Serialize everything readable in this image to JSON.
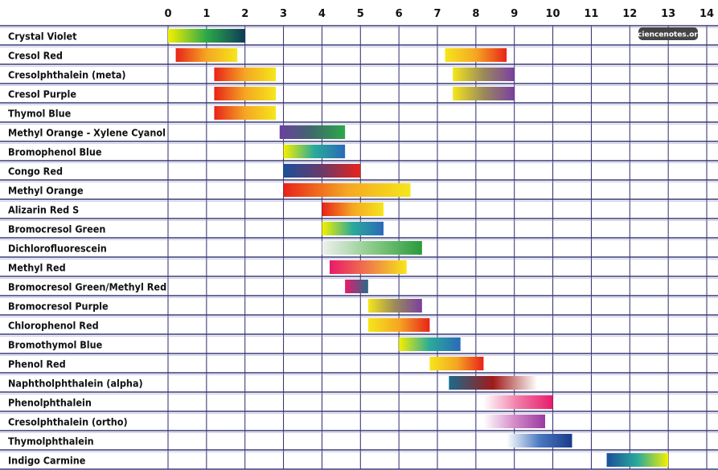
{
  "chart_data": {
    "type": "range-bar",
    "xlim": [
      0,
      14
    ],
    "x_ticks": [
      "0",
      "1",
      "2",
      "3",
      "4",
      "5",
      "6",
      "7",
      "8",
      "9",
      "10",
      "11",
      "12",
      "13",
      "14"
    ],
    "grid": true,
    "watermark": "sciencenotes.org",
    "rows": [
      {
        "label": "Crystal Violet",
        "ranges": [
          {
            "from": 0.0,
            "to": 2.0,
            "colors": [
              "#f5f000",
              "#2ba84a",
              "#0f3b57"
            ]
          }
        ]
      },
      {
        "label": "Cresol Red",
        "ranges": [
          {
            "from": 0.2,
            "to": 1.8,
            "colors": [
              "#e8231a",
              "#f5a623",
              "#f5e61b"
            ]
          },
          {
            "from": 7.2,
            "to": 8.8,
            "colors": [
              "#f5e61b",
              "#f5a623",
              "#e8231a"
            ]
          }
        ]
      },
      {
        "label": "Cresolphthalein (meta)",
        "ranges": [
          {
            "from": 1.2,
            "to": 2.8,
            "colors": [
              "#e8231a",
              "#f5a623",
              "#f5e61b"
            ]
          },
          {
            "from": 7.4,
            "to": 9.0,
            "colors": [
              "#f5e61b",
              "#9a8a5a",
              "#7b3fa0"
            ]
          }
        ]
      },
      {
        "label": "Cresol Purple",
        "ranges": [
          {
            "from": 1.2,
            "to": 2.8,
            "colors": [
              "#e8231a",
              "#f5a623",
              "#f5e61b"
            ]
          },
          {
            "from": 7.4,
            "to": 9.0,
            "colors": [
              "#f5e61b",
              "#9a8a5a",
              "#7b3fa0"
            ]
          }
        ]
      },
      {
        "label": "Thymol Blue",
        "ranges": [
          {
            "from": 1.2,
            "to": 2.8,
            "colors": [
              "#e8231a",
              "#f5a623",
              "#f5e61b"
            ]
          }
        ]
      },
      {
        "label": "Methyl Orange - Xylene Cyanol",
        "ranges": [
          {
            "from": 2.9,
            "to": 4.6,
            "colors": [
              "#6a3fa0",
              "#3f6a6a",
              "#2ba84a"
            ]
          }
        ]
      },
      {
        "label": "Bromophenol Blue",
        "ranges": [
          {
            "from": 3.0,
            "to": 4.6,
            "colors": [
              "#f5f000",
              "#2aaa9a",
              "#2a6ab8"
            ]
          }
        ]
      },
      {
        "label": "Congo Red",
        "ranges": [
          {
            "from": 3.0,
            "to": 5.0,
            "colors": [
              "#1a4f9a",
              "#6a3a6a",
              "#e8231a"
            ]
          }
        ]
      },
      {
        "label": "Methyl Orange",
        "ranges": [
          {
            "from": 3.0,
            "to": 6.3,
            "colors": [
              "#e8231a",
              "#f5a623",
              "#f5e61b"
            ]
          }
        ]
      },
      {
        "label": "Alizarin Red S",
        "ranges": [
          {
            "from": 4.0,
            "to": 5.6,
            "colors": [
              "#e8231a",
              "#f5a623",
              "#f5e61b"
            ]
          }
        ]
      },
      {
        "label": "Bromocresol Green",
        "ranges": [
          {
            "from": 4.0,
            "to": 5.6,
            "colors": [
              "#f5f000",
              "#2aaa9a",
              "#2a6ab8"
            ]
          }
        ]
      },
      {
        "label": "Dichlorofluorescein",
        "ranges": [
          {
            "from": 4.0,
            "to": 6.6,
            "colors": [
              "#f0f0f0",
              "#8acb8a",
              "#2a9a3a"
            ]
          }
        ]
      },
      {
        "label": "Methyl Red",
        "ranges": [
          {
            "from": 4.2,
            "to": 6.2,
            "colors": [
              "#e81a6a",
              "#f07a4a",
              "#f5e61b"
            ]
          }
        ]
      },
      {
        "label": "Bromocresol Green/Methyl Red",
        "ranges": [
          {
            "from": 4.6,
            "to": 5.2,
            "colors": [
              "#e81a6a",
              "#2a6a8a"
            ]
          }
        ]
      },
      {
        "label": "Bromocresol Purple",
        "ranges": [
          {
            "from": 5.2,
            "to": 6.6,
            "colors": [
              "#f5e61b",
              "#9a8a5a",
              "#7b3fa0"
            ]
          }
        ]
      },
      {
        "label": "Chlorophenol Red",
        "ranges": [
          {
            "from": 5.2,
            "to": 6.8,
            "colors": [
              "#f5e61b",
              "#f5a623",
              "#e8231a"
            ]
          }
        ]
      },
      {
        "label": "Bromothymol Blue",
        "ranges": [
          {
            "from": 6.0,
            "to": 7.6,
            "colors": [
              "#f5f000",
              "#2aaa9a",
              "#2a6ab8"
            ]
          }
        ]
      },
      {
        "label": "Phenol Red",
        "ranges": [
          {
            "from": 6.8,
            "to": 8.2,
            "colors": [
              "#f5e61b",
              "#f5a623",
              "#e8231a"
            ]
          }
        ]
      },
      {
        "label": "Naphtholphthalein (alpha)",
        "ranges": [
          {
            "from": 7.3,
            "to": 9.6,
            "colors": [
              "#1a6a8a",
              "#a01a1a",
              "#ffffff"
            ]
          }
        ]
      },
      {
        "label": "Phenolphthalein",
        "ranges": [
          {
            "from": 8.2,
            "to": 10.0,
            "colors": [
              "#ffffff",
              "#f07aa8",
              "#e81a6a"
            ]
          }
        ]
      },
      {
        "label": "Cresolphthalein (ortho)",
        "ranges": [
          {
            "from": 8.2,
            "to": 9.8,
            "colors": [
              "#ffffff",
              "#d48ac8",
              "#9a3aa0"
            ]
          }
        ]
      },
      {
        "label": "Thymolphthalein",
        "ranges": [
          {
            "from": 8.8,
            "to": 10.5,
            "colors": [
              "#ffffff",
              "#4a7ac0",
              "#1a3a8a"
            ]
          }
        ]
      },
      {
        "label": "Indigo Carmine",
        "ranges": [
          {
            "from": 11.4,
            "to": 13.0,
            "colors": [
              "#1a4f9a",
              "#2aaa9a",
              "#f5f000"
            ]
          }
        ]
      }
    ],
    "colors": {
      "grid": "#2a2a6a",
      "row_divider": "#3a3a7a",
      "text": "#111111"
    }
  }
}
